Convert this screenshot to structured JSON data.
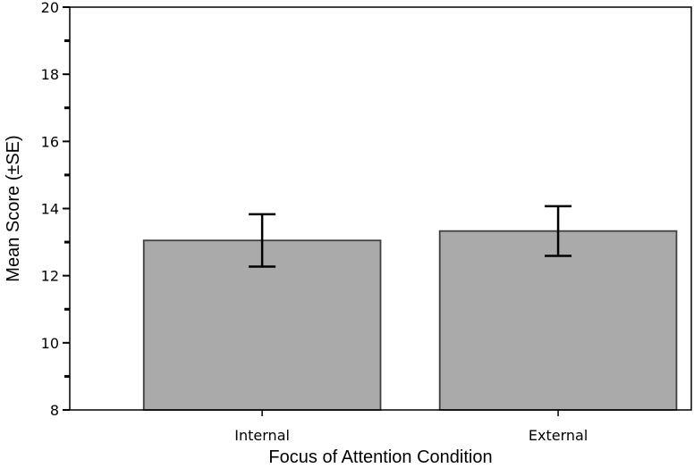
{
  "chart_data": {
    "type": "bar",
    "categories": [
      "Internal",
      "External"
    ],
    "values": [
      13.05,
      13.33
    ],
    "errors": [
      0.78,
      0.74
    ],
    "xlabel": "Focus of Attention Condition",
    "ylabel": "Mean Score (±SE)",
    "ylim": [
      8,
      20
    ],
    "yticks": [
      8,
      10,
      12,
      14,
      16,
      18,
      20
    ],
    "yticks_minor_step": 1,
    "grid": false,
    "legend": "none",
    "colors": {
      "bar_fill": "#aaaaaa",
      "bar_edge": "#404040",
      "error_bar": "#000000",
      "axis": "#000000"
    }
  }
}
